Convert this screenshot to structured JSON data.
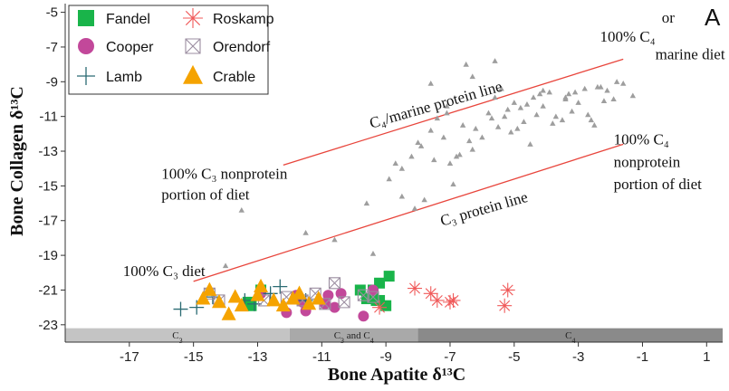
{
  "chart_data": {
    "type": "scatter",
    "panel_label": "A",
    "xlabel": "Bone Apatite δ¹³C",
    "ylabel": "Bone Collagen δ¹³C",
    "xlim": [
      -19,
      1.5
    ],
    "ylim": [
      -24,
      -4.5
    ],
    "x_ticks": [
      "-17",
      "-15",
      "-13",
      "-11",
      "-9",
      "-7",
      "-5",
      "-3",
      "-1",
      "1"
    ],
    "x_tick_values": [
      -17,
      -15,
      -13,
      -11,
      -9,
      -7,
      -5,
      -3,
      -1,
      1
    ],
    "y_ticks": [
      "-5",
      "-7",
      "-9",
      "-11",
      "-13",
      "-15",
      "-17",
      "-19",
      "-21",
      "-23"
    ],
    "y_tick_values": [
      -5,
      -7,
      -9,
      -11,
      -13,
      -15,
      -17,
      -19,
      -21,
      -23
    ],
    "bands": [
      {
        "label": "C",
        "sub": "3",
        "suffix": "",
        "x0": -19,
        "x1": -12.0,
        "color": "#c4c4c4"
      },
      {
        "label": "C",
        "sub": "3",
        "suffix": " and C",
        "sub2": "4",
        "x0": -12.0,
        "x1": -8.0,
        "color": "#a9a9a9"
      },
      {
        "label": "C",
        "sub": "4",
        "suffix": "",
        "x0": -8.0,
        "x1": 1.5,
        "color": "#8a8a8a"
      }
    ],
    "lines": [
      {
        "name": "C₄/marine protein line",
        "x": [
          -12.2,
          -1.6
        ],
        "y": [
          -13.8,
          -7.7
        ],
        "color": "#e8453c"
      },
      {
        "name": "C₃ protein line",
        "x": [
          -15.0,
          -1.6
        ],
        "y": [
          -20.5,
          -12.6
        ],
        "color": "#e8453c"
      }
    ],
    "annotations": [
      {
        "text": "C₄/marine protein line",
        "x": -7.4,
        "y": -10.6,
        "rotate": -16
      },
      {
        "text": "C₃ protein line",
        "x": -5.9,
        "y": -16.6,
        "rotate": -16
      },
      {
        "text": "100% C₄",
        "x": -0.6,
        "y": -6.7,
        "anchor": "end"
      },
      {
        "text": "or",
        "x": -0.4,
        "y": -5.6,
        "anchor": "start"
      },
      {
        "text": "marine diet",
        "x": -0.6,
        "y": -7.7,
        "anchor": "start"
      },
      {
        "text": "100% C₃ nonprotein",
        "x": -16.0,
        "y": -14.6,
        "anchor": "start"
      },
      {
        "text": "portion of diet",
        "x": -16.0,
        "y": -15.8,
        "anchor": "start"
      },
      {
        "text": "100% C₄",
        "x": -1.9,
        "y": -12.6,
        "anchor": "start"
      },
      {
        "text": "nonprotein",
        "x": -1.9,
        "y": -13.9,
        "anchor": "start"
      },
      {
        "text": "portion of diet",
        "x": -1.9,
        "y": -15.2,
        "anchor": "start"
      },
      {
        "text": "100% C₃ diet",
        "x": -17.2,
        "y": -20.2,
        "anchor": "start"
      }
    ],
    "legend": {
      "placement": "top-left",
      "items": [
        {
          "name": "Fandel",
          "marker": "square",
          "color": "#19b44a"
        },
        {
          "name": "Cooper",
          "marker": "circle",
          "color": "#c2489a"
        },
        {
          "name": "Lamb",
          "marker": "plus",
          "color": "#2b6b73"
        },
        {
          "name": "Roskamp",
          "marker": "asterisk",
          "color": "#f05a5a"
        },
        {
          "name": "Orendorf",
          "marker": "boxcross",
          "color": "#9b8da0"
        },
        {
          "name": "Crable",
          "marker": "triangle",
          "color": "#f5a300"
        }
      ]
    },
    "series": [
      {
        "name": "Fandel",
        "marker": "square",
        "color": "#19b44a",
        "x": [
          -13.3,
          -13.2,
          -12.9,
          -9.8,
          -9.6,
          -9.4,
          -9.3,
          -9.2,
          -9.2,
          -9.0,
          -8.9
        ],
        "y": [
          -21.7,
          -21.9,
          -21.0,
          -21.0,
          -21.5,
          -21.0,
          -21.6,
          -20.6,
          -21.6,
          -21.9,
          -20.2
        ]
      },
      {
        "name": "Cooper",
        "marker": "circle",
        "color": "#c2489a",
        "x": [
          -12.9,
          -12.1,
          -11.8,
          -11.6,
          -11.5,
          -10.9,
          -10.8,
          -10.6,
          -10.4,
          -9.7,
          -9.4
        ],
        "y": [
          -21.2,
          -22.3,
          -21.3,
          -21.7,
          -22.2,
          -21.8,
          -21.3,
          -22.0,
          -21.2,
          -22.5,
          -21.0
        ]
      },
      {
        "name": "Lamb",
        "marker": "plus",
        "color": "#2b6b73",
        "x": [
          -15.4,
          -14.9,
          -14.4,
          -13.4,
          -13.1,
          -12.6,
          -12.3,
          -11.5
        ],
        "y": [
          -22.1,
          -22.0,
          -21.4,
          -21.6,
          -21.8,
          -21.2,
          -20.8,
          -21.6
        ]
      },
      {
        "name": "Roskamp",
        "marker": "asterisk",
        "color": "#f05a5a",
        "x": [
          -8.1,
          -7.6,
          -7.4,
          -7.0,
          -6.9,
          -5.3,
          -5.2,
          -9.2
        ],
        "y": [
          -20.9,
          -21.2,
          -21.6,
          -21.7,
          -21.6,
          -21.9,
          -21.0,
          -22.0
        ]
      },
      {
        "name": "Orendorf",
        "marker": "boxcross",
        "color": "#9b8da0",
        "x": [
          -14.5,
          -14.2,
          -12.8,
          -12.1,
          -11.6,
          -11.2,
          -10.9,
          -10.6,
          -10.3,
          -9.7,
          -9.4
        ],
        "y": [
          -21.2,
          -21.6,
          -21.6,
          -21.4,
          -21.6,
          -21.2,
          -21.8,
          -20.6,
          -21.7,
          -21.3,
          -21.4
        ]
      },
      {
        "name": "Crable",
        "marker": "triangle",
        "color": "#f5a300",
        "x": [
          -14.7,
          -14.5,
          -14.2,
          -13.9,
          -13.7,
          -13.5,
          -13.0,
          -12.9,
          -12.5,
          -12.2,
          -11.9,
          -11.7,
          -11.4,
          -11.1
        ],
        "y": [
          -21.5,
          -21.0,
          -21.7,
          -22.4,
          -21.4,
          -21.9,
          -21.3,
          -20.8,
          -21.6,
          -21.9,
          -21.5,
          -21.2,
          -21.8,
          -21.5
        ]
      },
      {
        "name": "",
        "marker": "smalltri",
        "color": "#9e9e9e",
        "x": [
          -5.8,
          -5.5,
          -5.2,
          -5.0,
          -4.7,
          -4.4,
          -4.1,
          -3.7,
          -3.3,
          -3.0,
          -2.7,
          -2.4,
          -2.1,
          -1.9,
          -1.6,
          -1.3,
          -5.6,
          -5.3,
          -4.9,
          -4.6,
          -4.3,
          -3.9,
          -3.5,
          -3.2,
          -2.8,
          -2.5,
          -2.2,
          -1.8,
          -6.0,
          -5.7,
          -5.4,
          -5.1,
          -4.8,
          -4.5,
          -4.2,
          -3.8,
          -3.4,
          -3.1,
          -2.6,
          -2.3,
          -7.1,
          -7.6,
          -7.2,
          -6.6,
          -6.3,
          -7.9,
          -7.4,
          -6.8,
          -6.4,
          -8.2,
          -8.7,
          -8.0,
          -8.5,
          -7.0,
          -6.2,
          -6.9,
          -9.6,
          -8.9,
          -7.8,
          -7.5,
          -6.7,
          -14.0,
          -13.5,
          -11.5,
          -10.6,
          -9.4,
          -8.5,
          -8.1,
          -7.1,
          -6.5,
          -5.6,
          -4.1,
          -3.4,
          -7.6,
          -6.3
        ],
        "y": [
          -10.8,
          -11.6,
          -10.6,
          -10.2,
          -11.3,
          -9.9,
          -10.4,
          -11.0,
          -9.7,
          -10.2,
          -10.9,
          -9.3,
          -9.5,
          -10.0,
          -9.1,
          -9.8,
          -9.9,
          -11.0,
          -11.7,
          -10.3,
          -10.9,
          -9.6,
          -11.2,
          -10.7,
          -9.4,
          -11.5,
          -10.1,
          -9.0,
          -12.2,
          -11.1,
          -9.4,
          -11.9,
          -10.5,
          -12.6,
          -9.7,
          -11.4,
          -10.0,
          -9.6,
          -11.2,
          -9.3,
          -10.4,
          -11.8,
          -12.2,
          -11.5,
          -12.9,
          -12.7,
          -11.1,
          -13.3,
          -12.4,
          -13.3,
          -13.7,
          -12.5,
          -14.0,
          -13.7,
          -11.7,
          -14.9,
          -16.0,
          -14.6,
          -15.8,
          -13.5,
          -13.2,
          -19.6,
          -16.4,
          -17.7,
          -18.1,
          -18.9,
          -15.6,
          -16.3,
          -10.8,
          -8.0,
          -7.8,
          -9.5,
          -9.9,
          -9.1,
          -8.7
        ]
      }
    ]
  }
}
